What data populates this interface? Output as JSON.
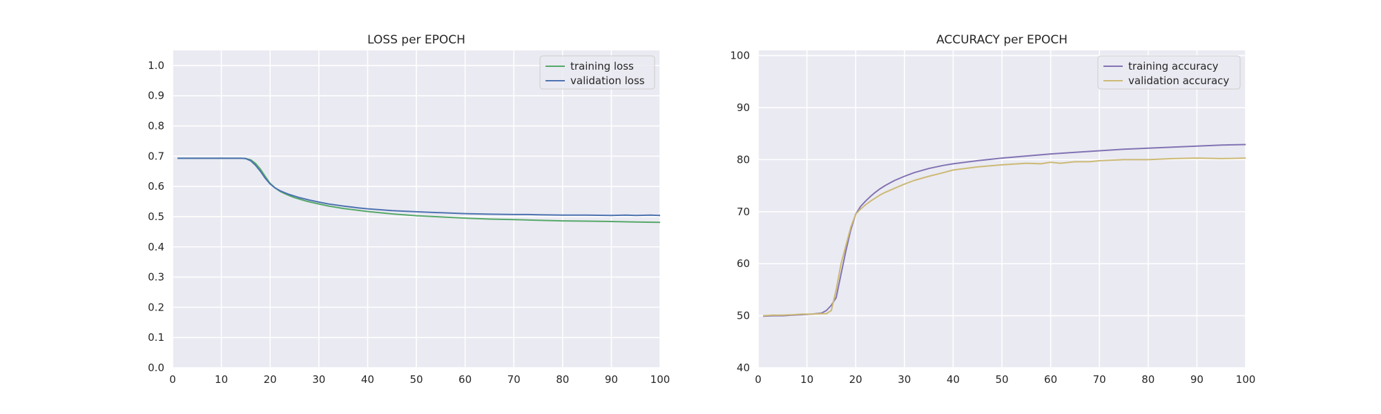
{
  "chart_data": [
    {
      "type": "line",
      "title": "LOSS per EPOCH",
      "xlabel": "",
      "ylabel": "",
      "xlim": [
        0,
        100
      ],
      "ylim": [
        0.0,
        1.05
      ],
      "xticks": [
        "0",
        "10",
        "20",
        "30",
        "40",
        "50",
        "60",
        "70",
        "80",
        "90",
        "100"
      ],
      "yticks": [
        "0.0",
        "0.1",
        "0.2",
        "0.3",
        "0.4",
        "0.5",
        "0.6",
        "0.7",
        "0.8",
        "0.9",
        "1.0"
      ],
      "grid": true,
      "legend_position": "top-right",
      "series": [
        {
          "name": "training loss",
          "color": "#55a868",
          "x": [
            1,
            5,
            10,
            14,
            15,
            16,
            17,
            18,
            19,
            20,
            21,
            22,
            23,
            24,
            25,
            26,
            27,
            28,
            30,
            32,
            35,
            38,
            40,
            45,
            50,
            55,
            60,
            65,
            70,
            75,
            80,
            85,
            90,
            95,
            100
          ],
          "values": [
            0.693,
            0.693,
            0.693,
            0.693,
            0.692,
            0.688,
            0.676,
            0.657,
            0.633,
            0.61,
            0.595,
            0.584,
            0.576,
            0.569,
            0.563,
            0.558,
            0.553,
            0.549,
            0.542,
            0.535,
            0.527,
            0.521,
            0.517,
            0.509,
            0.503,
            0.499,
            0.495,
            0.492,
            0.49,
            0.488,
            0.486,
            0.485,
            0.484,
            0.482,
            0.481
          ]
        },
        {
          "name": "validation loss",
          "color": "#4c72b0",
          "x": [
            1,
            5,
            10,
            14,
            15,
            16,
            17,
            18,
            19,
            20,
            21,
            22,
            23,
            24,
            25,
            26,
            27,
            28,
            30,
            32,
            35,
            38,
            40,
            45,
            50,
            55,
            60,
            65,
            70,
            73,
            75,
            80,
            85,
            90,
            93,
            95,
            98,
            100
          ],
          "values": [
            0.693,
            0.693,
            0.693,
            0.693,
            0.692,
            0.685,
            0.67,
            0.65,
            0.627,
            0.608,
            0.595,
            0.586,
            0.579,
            0.573,
            0.568,
            0.563,
            0.559,
            0.555,
            0.548,
            0.542,
            0.535,
            0.529,
            0.526,
            0.52,
            0.516,
            0.513,
            0.51,
            0.508,
            0.507,
            0.507,
            0.506,
            0.505,
            0.505,
            0.504,
            0.505,
            0.504,
            0.505,
            0.504
          ]
        }
      ]
    },
    {
      "type": "line",
      "title": "ACCURACY per EPOCH",
      "xlabel": "",
      "ylabel": "",
      "xlim": [
        0,
        100
      ],
      "ylim": [
        40,
        101
      ],
      "xticks": [
        "0",
        "10",
        "20",
        "30",
        "40",
        "50",
        "60",
        "70",
        "80",
        "90",
        "100"
      ],
      "yticks": [
        "40",
        "50",
        "60",
        "70",
        "80",
        "90",
        "100"
      ],
      "grid": true,
      "legend_position": "top-right",
      "series": [
        {
          "name": "training accuracy",
          "color": "#8172b3",
          "x": [
            1,
            3,
            5,
            7,
            9,
            11,
            13,
            14,
            15,
            16,
            17,
            18,
            19,
            20,
            21,
            22,
            23,
            24,
            25,
            26,
            27,
            28,
            30,
            32,
            35,
            38,
            40,
            45,
            50,
            55,
            60,
            65,
            70,
            75,
            80,
            85,
            90,
            95,
            100
          ],
          "values": [
            49.9,
            50.0,
            50.0,
            50.1,
            50.2,
            50.3,
            50.5,
            51.0,
            52.0,
            53.5,
            58.0,
            62.5,
            66.5,
            69.5,
            71.0,
            72.0,
            72.9,
            73.7,
            74.4,
            75.0,
            75.5,
            76.0,
            76.8,
            77.5,
            78.3,
            78.9,
            79.2,
            79.8,
            80.3,
            80.7,
            81.1,
            81.4,
            81.7,
            82.0,
            82.2,
            82.4,
            82.6,
            82.8,
            82.9
          ]
        },
        {
          "name": "validation accuracy",
          "color": "#ccb974",
          "x": [
            1,
            3,
            5,
            7,
            9,
            11,
            13,
            14,
            15,
            16,
            17,
            18,
            19,
            20,
            21,
            22,
            23,
            24,
            25,
            26,
            27,
            28,
            30,
            32,
            35,
            38,
            40,
            45,
            50,
            55,
            58,
            60,
            62,
            65,
            68,
            70,
            75,
            80,
            85,
            90,
            95,
            100
          ],
          "values": [
            50.0,
            50.1,
            50.1,
            50.2,
            50.3,
            50.3,
            50.4,
            50.4,
            51.0,
            55.0,
            60.0,
            63.5,
            67.0,
            69.5,
            70.5,
            71.3,
            72.0,
            72.6,
            73.2,
            73.7,
            74.1,
            74.5,
            75.3,
            76.0,
            76.8,
            77.5,
            78.0,
            78.6,
            79.0,
            79.3,
            79.2,
            79.5,
            79.3,
            79.6,
            79.6,
            79.8,
            80.0,
            80.0,
            80.2,
            80.3,
            80.2,
            80.3
          ]
        }
      ]
    }
  ]
}
